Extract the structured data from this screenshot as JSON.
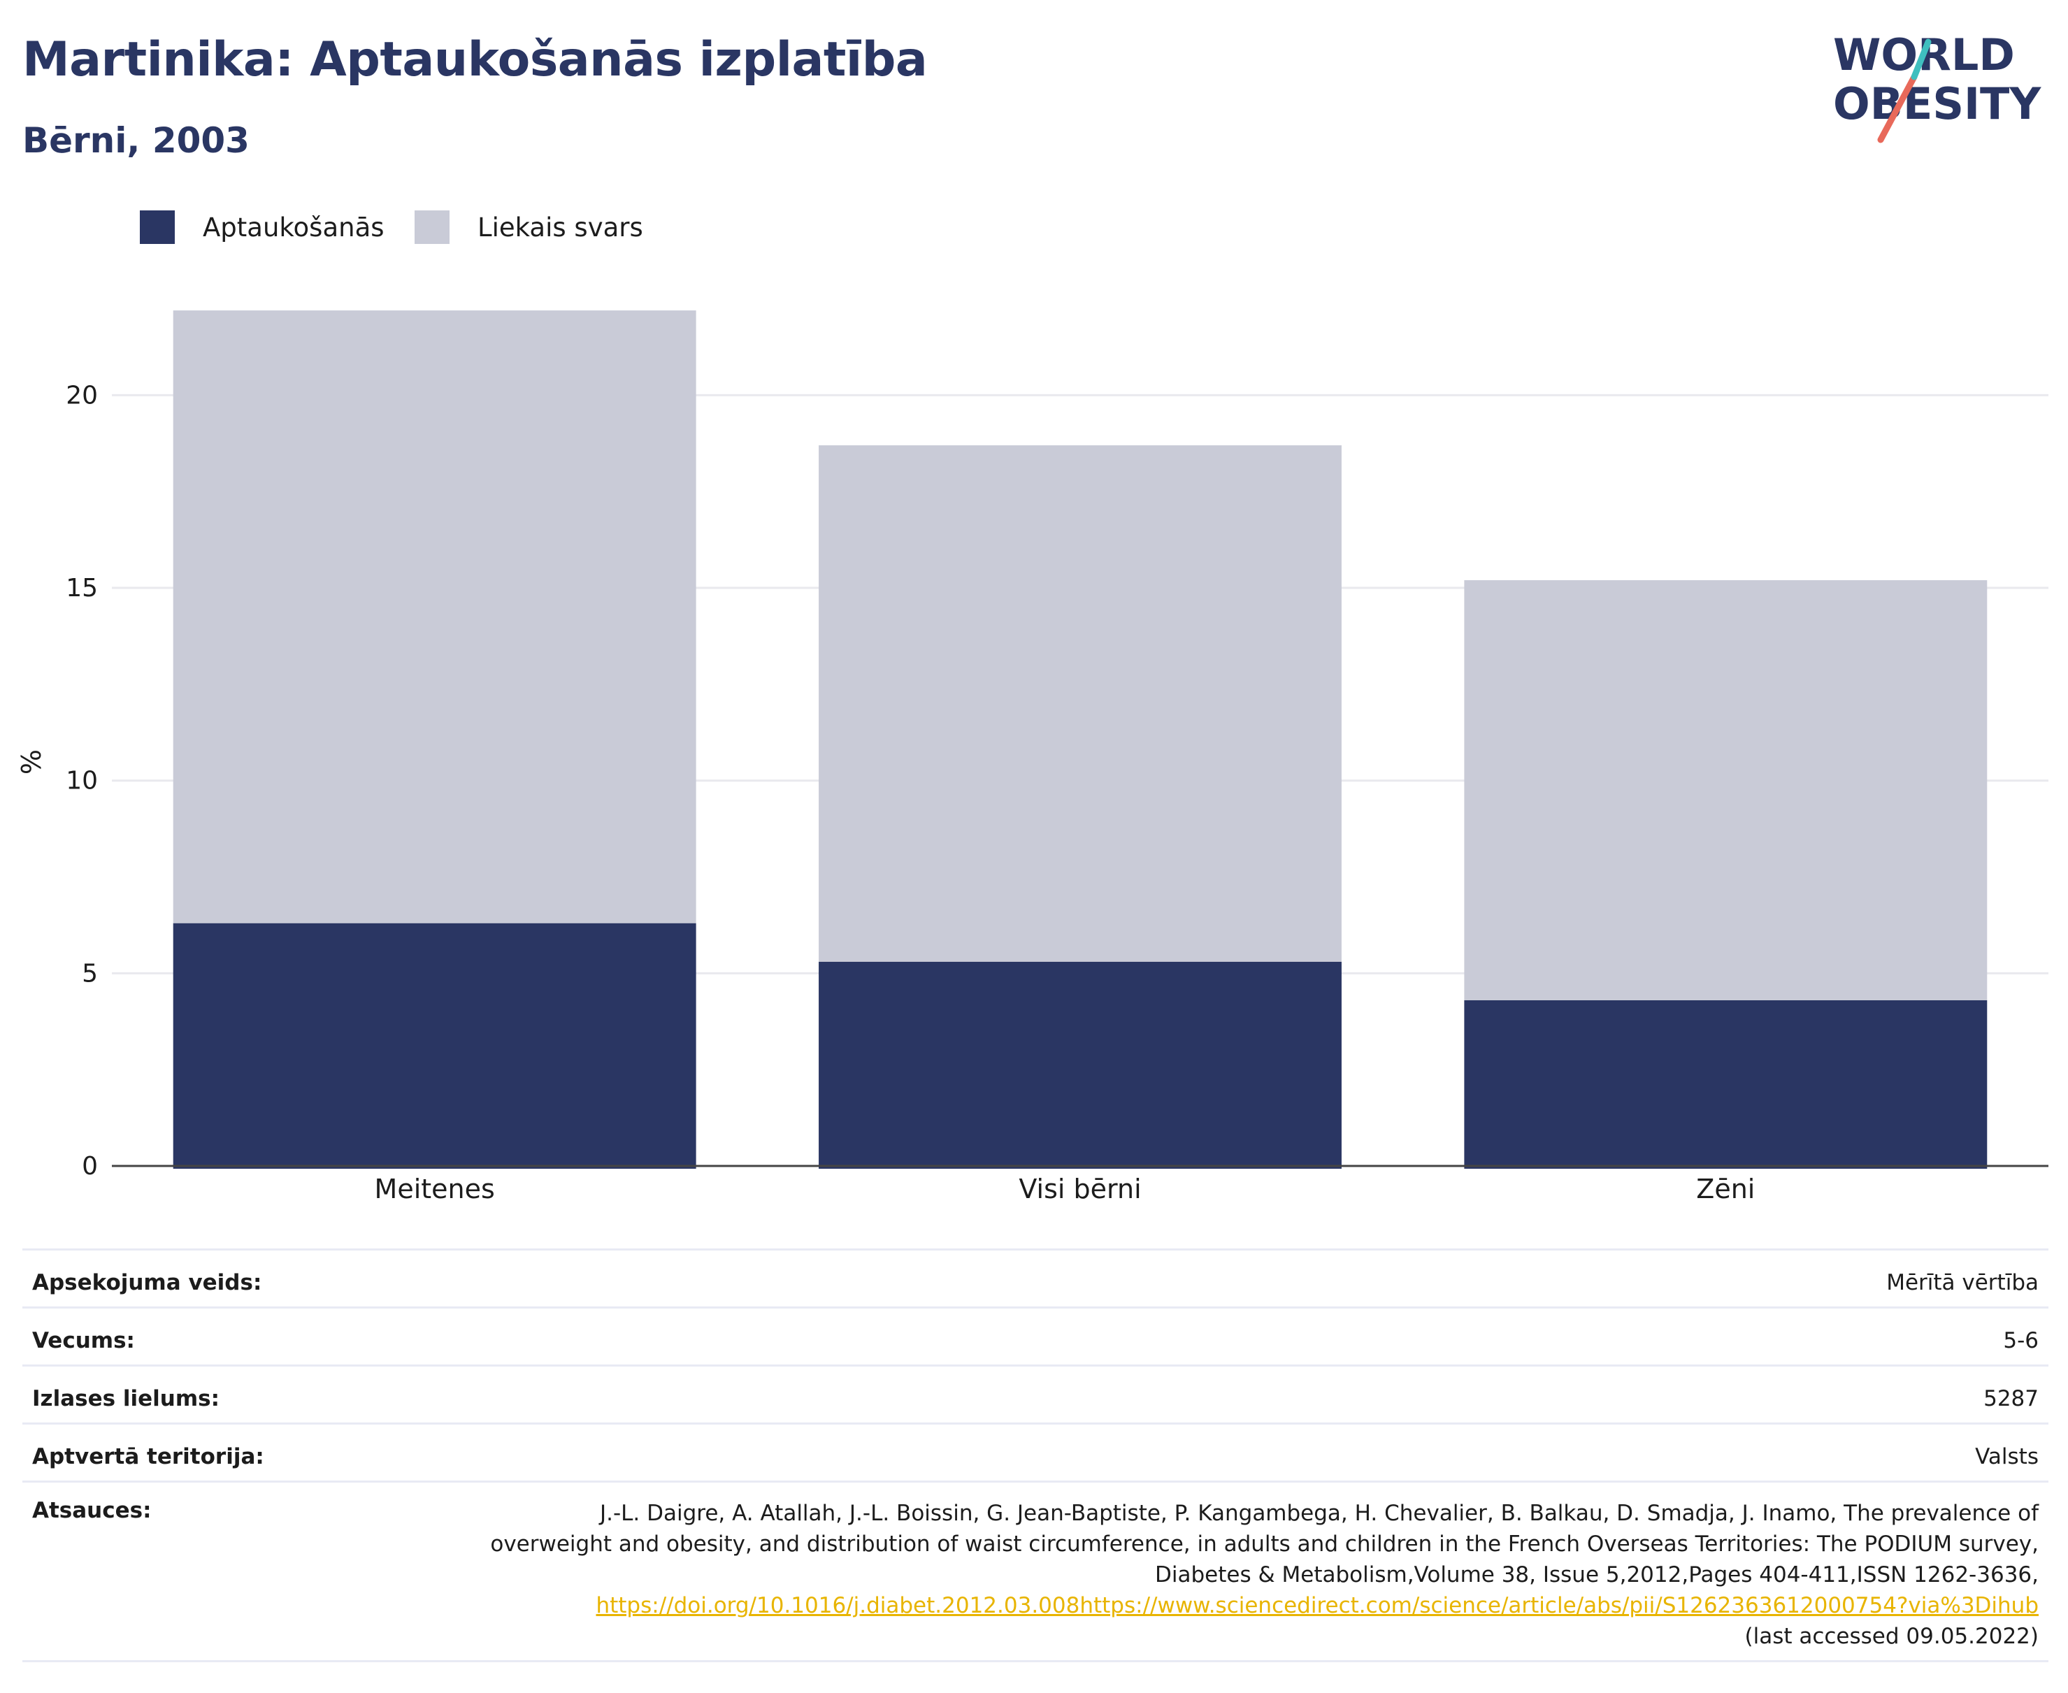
{
  "header": {
    "title": "Martinika: Aptaukošanās izplatība",
    "subtitle": "Bērni, 2003"
  },
  "logo": {
    "line1": "WORLD",
    "line2": "OBESITY"
  },
  "legend": [
    {
      "label": "Aptaukošanās",
      "color": "#2a3663"
    },
    {
      "label": "Liekais svars",
      "color": "#c9cbd7"
    }
  ],
  "chart_data": {
    "type": "bar",
    "stacked": true,
    "categories": [
      "Meitenes",
      "Visi bērni",
      "Zēni"
    ],
    "series": [
      {
        "name": "Aptaukošanās",
        "values": [
          6.3,
          5.3,
          4.3
        ],
        "color": "#2a3663"
      },
      {
        "name": "Liekais svars",
        "values": [
          15.9,
          13.4,
          10.9
        ],
        "color": "#c9cbd7"
      }
    ],
    "ylabel": "%",
    "ylim": [
      0,
      23
    ],
    "yticks": [
      0,
      5,
      10,
      15,
      20
    ],
    "grid": true
  },
  "info": {
    "survey_type": {
      "label": "Apsekojuma veids:",
      "value": "Mērītā vērtība"
    },
    "age": {
      "label": "Vecums:",
      "value": "5-6"
    },
    "sample_size": {
      "label": "Izlases lielums:",
      "value": "5287"
    },
    "area": {
      "label": "Aptvertā teritorija:",
      "value": "Valsts"
    },
    "references": {
      "label": "Atsauces:",
      "text": "J.-L. Daigre, A. Atallah, J.-L. Boissin, G. Jean-Baptiste, P. Kangambega, H. Chevalier, B. Balkau, D. Smadja, J. Inamo, The prevalence of overweight and obesity, and distribution of waist circumference, in adults and children in the French Overseas Territories: The PODIUM survey, Diabetes & Metabolism,Volume 38, Issue 5,2012,Pages 404-411,ISSN 1262-3636,",
      "link": "https://doi.org/10.1016/j.diabet.2012.03.008https://www.sciencedirect.com/science/article/abs/pii/S1262363612000754?via%3Dihub",
      "accessed": "(last accessed 09.05.2022)"
    }
  }
}
